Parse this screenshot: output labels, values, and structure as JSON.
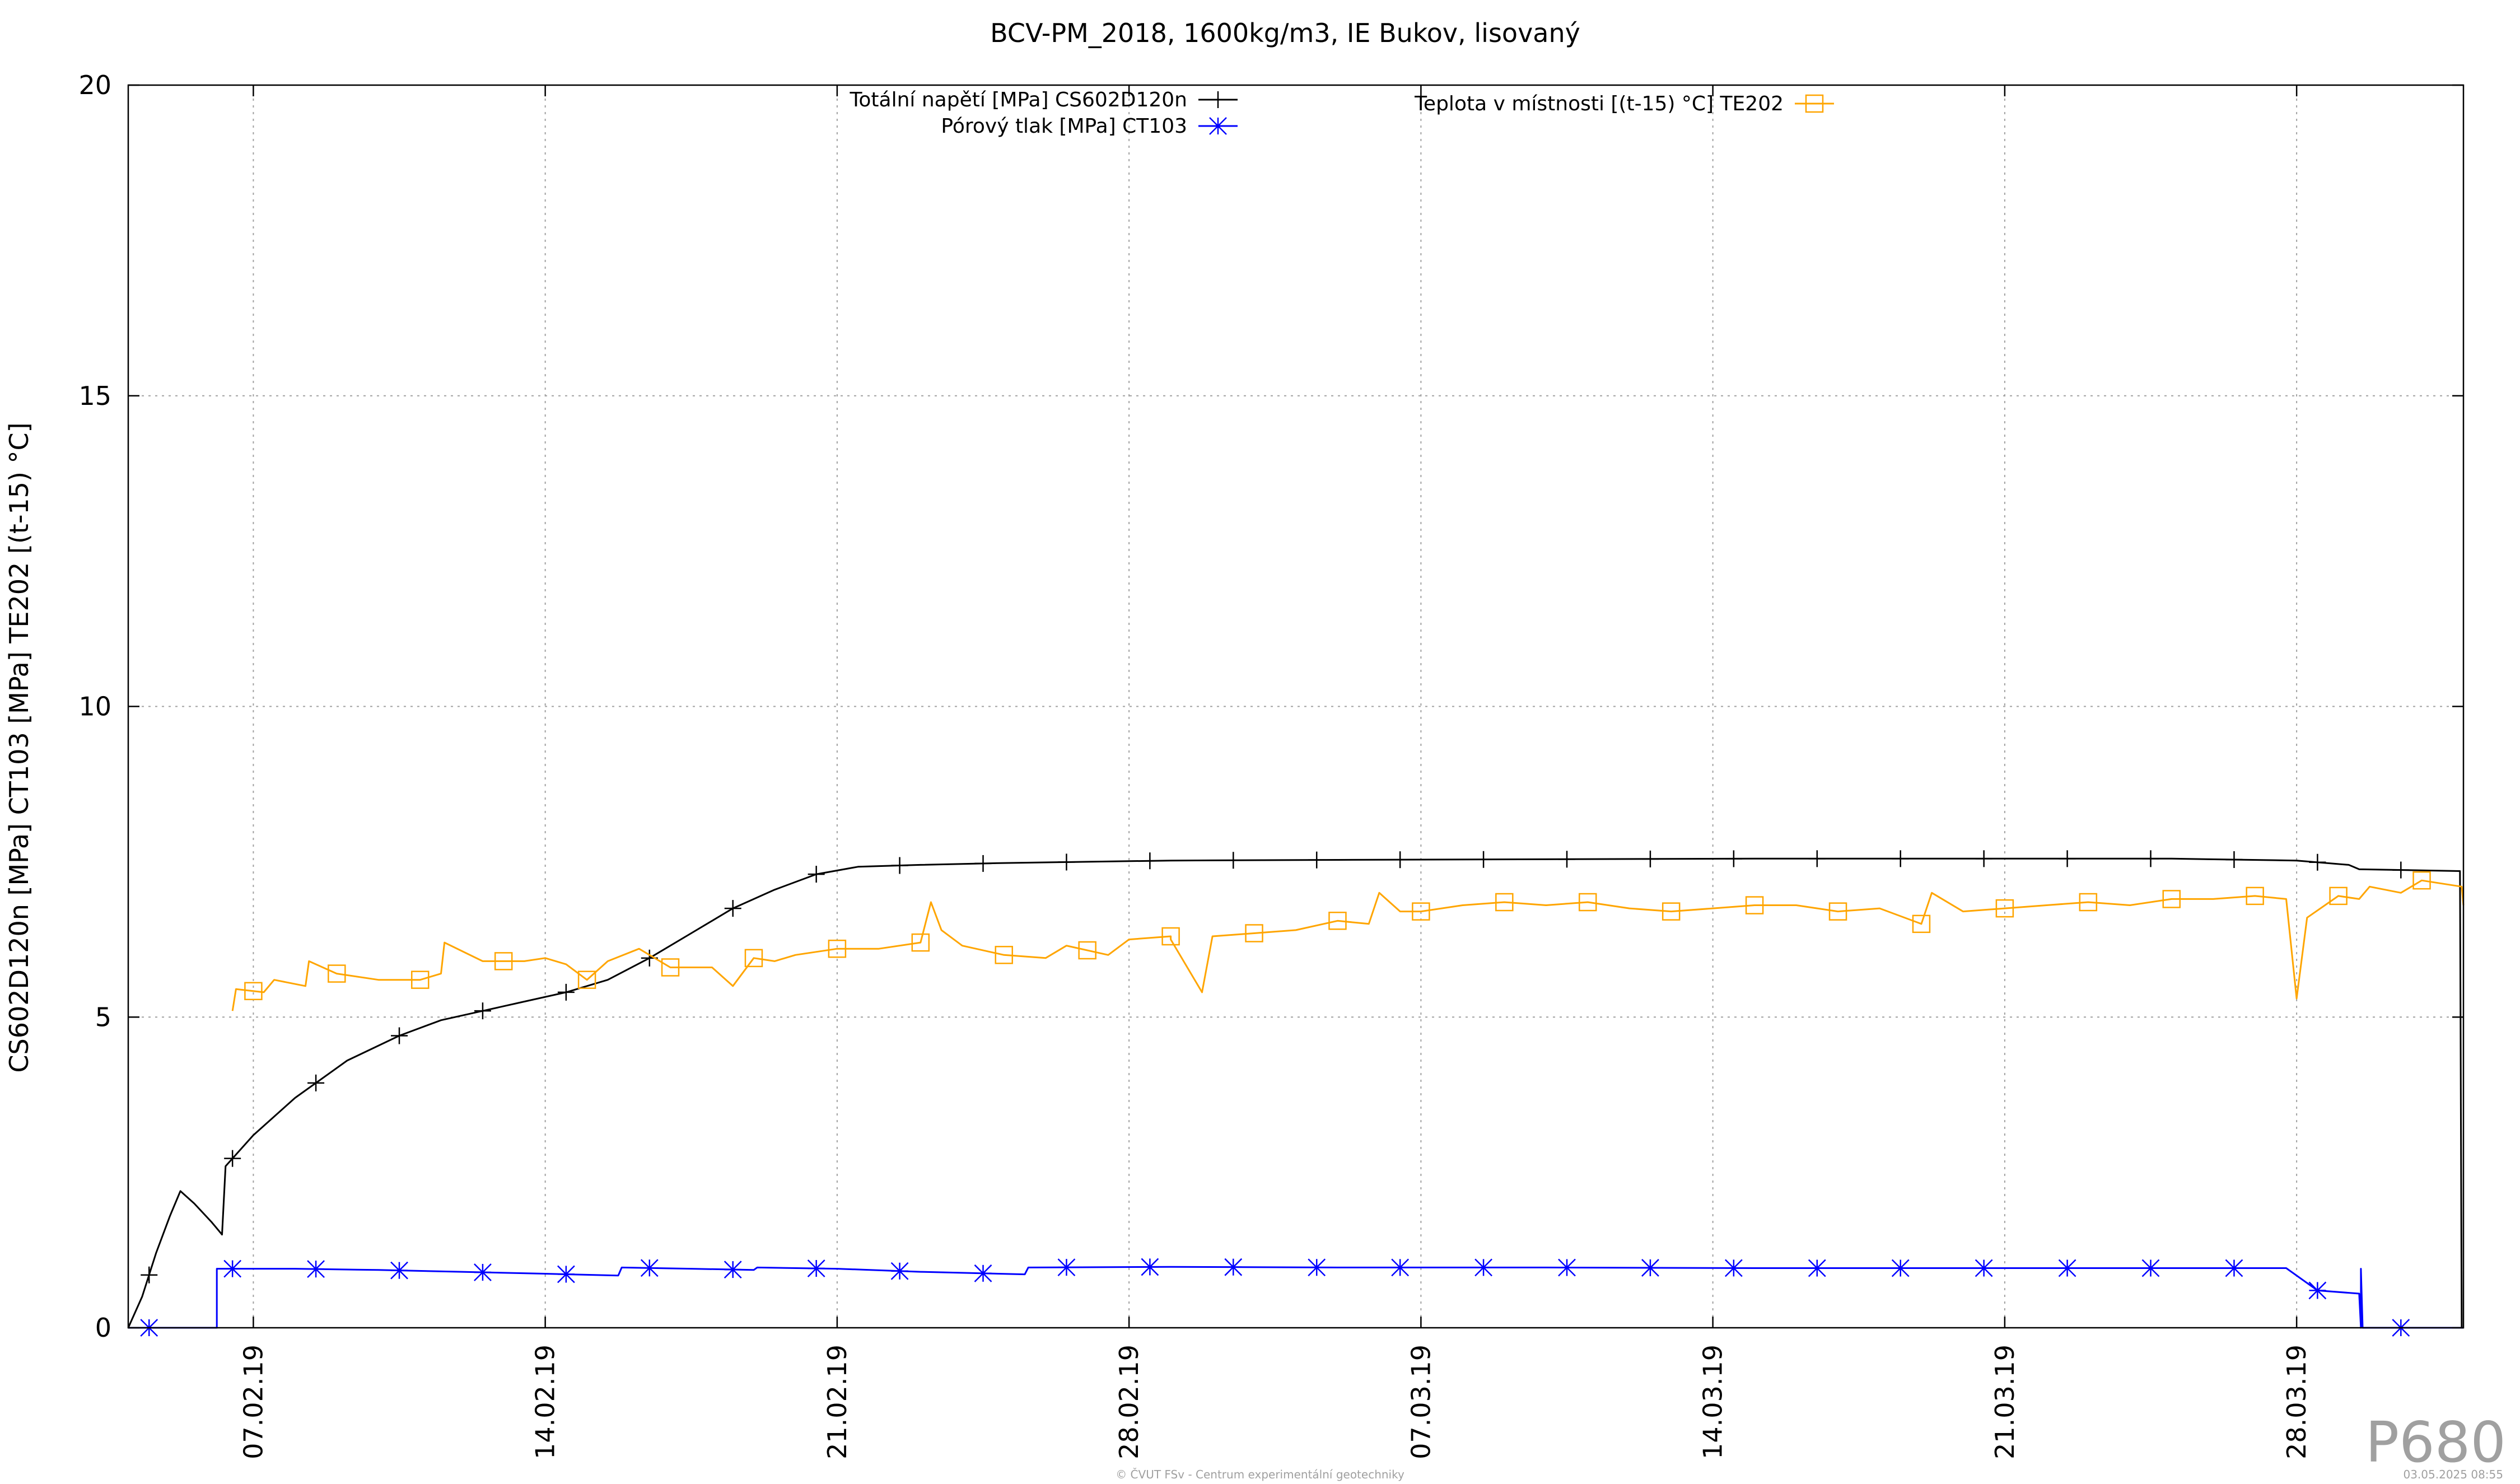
{
  "chart_data": {
    "type": "line",
    "title": "BCV-PM_2018, 1600kg/m3, IE Bukov, lisovaný",
    "ylabel": "CS602D120n [MPa] CT103 [MPa] TE202 [(t-15) °C]",
    "xlabel": "",
    "x_type": "date",
    "xlim": [
      "2019-02-04T00:00",
      "2019-04-01T00:00"
    ],
    "ylim": [
      0,
      20
    ],
    "yticks": [
      0,
      5,
      10,
      15,
      20
    ],
    "xticks": [
      {
        "x": "2019-02-07",
        "label": "07.02.19"
      },
      {
        "x": "2019-02-14",
        "label": "14.02.19"
      },
      {
        "x": "2019-02-21",
        "label": "21.02.19"
      },
      {
        "x": "2019-02-28",
        "label": "28.02.19"
      },
      {
        "x": "2019-03-07",
        "label": "07.03.19"
      },
      {
        "x": "2019-03-14",
        "label": "14.03.19"
      },
      {
        "x": "2019-03-21",
        "label": "21.03.19"
      },
      {
        "x": "2019-03-28",
        "label": "28.03.19"
      }
    ],
    "grid": true,
    "legend_position": "top",
    "series": [
      {
        "name": "Totální napětí [MPa] CS602D120n",
        "color": "#000000",
        "marker": "plus",
        "points": [
          [
            "2019-02-04T00:00",
            0.0
          ],
          [
            "2019-02-04T08:00",
            0.5
          ],
          [
            "2019-02-04T16:00",
            1.2
          ],
          [
            "2019-02-05T00:00",
            1.8
          ],
          [
            "2019-02-05T06:00",
            2.2
          ],
          [
            "2019-02-05T14:00",
            2.0
          ],
          [
            "2019-02-06T00:00",
            1.7
          ],
          [
            "2019-02-06T06:00",
            1.5
          ],
          [
            "2019-02-06T08:00",
            2.6
          ],
          [
            "2019-02-07T00:00",
            3.1
          ],
          [
            "2019-02-08T00:00",
            3.7
          ],
          [
            "2019-02-09T06:00",
            4.3
          ],
          [
            "2019-02-10T12:00",
            4.7
          ],
          [
            "2019-02-11T12:00",
            4.95
          ],
          [
            "2019-02-12T12:00",
            5.1
          ],
          [
            "2019-02-13T12:00",
            5.25
          ],
          [
            "2019-02-14T12:00",
            5.4
          ],
          [
            "2019-02-15T12:00",
            5.6
          ],
          [
            "2019-02-16T12:00",
            5.95
          ],
          [
            "2019-02-17T12:00",
            6.35
          ],
          [
            "2019-02-18T12:00",
            6.75
          ],
          [
            "2019-02-19T12:00",
            7.05
          ],
          [
            "2019-02-20T12:00",
            7.3
          ],
          [
            "2019-02-21T12:00",
            7.42
          ],
          [
            "2019-02-23T00:00",
            7.45
          ],
          [
            "2019-02-25T00:00",
            7.48
          ],
          [
            "2019-02-27T00:00",
            7.5
          ],
          [
            "2019-03-01T00:00",
            7.52
          ],
          [
            "2019-03-05T00:00",
            7.53
          ],
          [
            "2019-03-10T00:00",
            7.54
          ],
          [
            "2019-03-15T00:00",
            7.55
          ],
          [
            "2019-03-20T00:00",
            7.55
          ],
          [
            "2019-03-25T00:00",
            7.55
          ],
          [
            "2019-03-28T00:00",
            7.52
          ],
          [
            "2019-03-29T06:00",
            7.45
          ],
          [
            "2019-03-29T12:00",
            7.38
          ],
          [
            "2019-03-31T22:00",
            7.35
          ],
          [
            "2019-03-31T23:00",
            0.0
          ]
        ]
      },
      {
        "name": "Pórový tlak [MPa] CT103",
        "color": "#0000ff",
        "marker": "star",
        "points": [
          [
            "2019-02-04T00:00",
            0.0
          ],
          [
            "2019-02-06T03:00",
            0.0
          ],
          [
            "2019-02-06T03:00",
            0.95
          ],
          [
            "2019-02-08T00:00",
            0.95
          ],
          [
            "2019-02-10T00:00",
            0.93
          ],
          [
            "2019-02-12T00:00",
            0.9
          ],
          [
            "2019-02-14T00:00",
            0.87
          ],
          [
            "2019-02-15T18:00",
            0.84
          ],
          [
            "2019-02-15T20:00",
            0.97
          ],
          [
            "2019-02-17T12:00",
            0.95
          ],
          [
            "2019-02-19T00:00",
            0.93
          ],
          [
            "2019-02-19T02:00",
            0.97
          ],
          [
            "2019-02-21T00:00",
            0.95
          ],
          [
            "2019-02-23T00:00",
            0.9
          ],
          [
            "2019-02-25T12:00",
            0.86
          ],
          [
            "2019-02-25T14:00",
            0.97
          ],
          [
            "2019-03-01T00:00",
            0.98
          ],
          [
            "2019-03-05T00:00",
            0.97
          ],
          [
            "2019-03-10T00:00",
            0.97
          ],
          [
            "2019-03-15T00:00",
            0.96
          ],
          [
            "2019-03-20T00:00",
            0.96
          ],
          [
            "2019-03-27T18:00",
            0.96
          ],
          [
            "2019-03-28T12:00",
            0.6
          ],
          [
            "2019-03-29T12:00",
            0.55
          ],
          [
            "2019-03-29T13:00",
            0.0
          ],
          [
            "2019-03-29T13:00",
            0.95
          ],
          [
            "2019-03-29T14:00",
            0.0
          ],
          [
            "2019-04-01T00:00",
            0.0
          ]
        ]
      },
      {
        "name": "Teplota v místnosti [(t-15) °C] TE202",
        "color": "#ffa500",
        "marker": "square",
        "points": [
          [
            "2019-02-06T12:00",
            5.1
          ],
          [
            "2019-02-06T14:00",
            5.45
          ],
          [
            "2019-02-07T06:00",
            5.4
          ],
          [
            "2019-02-07T12:00",
            5.6
          ],
          [
            "2019-02-08T06:00",
            5.5
          ],
          [
            "2019-02-08T08:00",
            5.9
          ],
          [
            "2019-02-09T00:00",
            5.7
          ],
          [
            "2019-02-10T00:00",
            5.6
          ],
          [
            "2019-02-11T00:00",
            5.6
          ],
          [
            "2019-02-11T12:00",
            5.7
          ],
          [
            "2019-02-11T14:00",
            6.2
          ],
          [
            "2019-02-12T12:00",
            5.9
          ],
          [
            "2019-02-13T12:00",
            5.9
          ],
          [
            "2019-02-14T00:00",
            5.95
          ],
          [
            "2019-02-14T12:00",
            5.85
          ],
          [
            "2019-02-15T00:00",
            5.6
          ],
          [
            "2019-02-15T12:00",
            5.9
          ],
          [
            "2019-02-16T06:00",
            6.1
          ],
          [
            "2019-02-17T00:00",
            5.8
          ],
          [
            "2019-02-18T00:00",
            5.8
          ],
          [
            "2019-02-18T12:00",
            5.5
          ],
          [
            "2019-02-19T00:00",
            5.95
          ],
          [
            "2019-02-19T12:00",
            5.9
          ],
          [
            "2019-02-20T00:00",
            6.0
          ],
          [
            "2019-02-21T00:00",
            6.1
          ],
          [
            "2019-02-22T00:00",
            6.1
          ],
          [
            "2019-02-23T00:00",
            6.2
          ],
          [
            "2019-02-23T06:00",
            6.85
          ],
          [
            "2019-02-23T12:00",
            6.4
          ],
          [
            "2019-02-24T00:00",
            6.15
          ],
          [
            "2019-02-25T00:00",
            6.0
          ],
          [
            "2019-02-26T00:00",
            5.95
          ],
          [
            "2019-02-26T12:00",
            6.15
          ],
          [
            "2019-02-27T12:00",
            6.0
          ],
          [
            "2019-02-28T00:00",
            6.25
          ],
          [
            "2019-02-29T00:00",
            6.3
          ],
          [
            "2019-03-01T00:00",
            6.25
          ],
          [
            "2019-03-01T18:00",
            5.4
          ],
          [
            "2019-03-02T00:00",
            6.3
          ],
          [
            "2019-03-03T00:00",
            6.35
          ],
          [
            "2019-03-04T00:00",
            6.4
          ],
          [
            "2019-03-05T00:00",
            6.55
          ],
          [
            "2019-03-05T18:00",
            6.5
          ],
          [
            "2019-03-06T00:00",
            7.0
          ],
          [
            "2019-03-06T12:00",
            6.7
          ],
          [
            "2019-03-07T00:00",
            6.7
          ],
          [
            "2019-03-08T00:00",
            6.8
          ],
          [
            "2019-03-09T00:00",
            6.85
          ],
          [
            "2019-03-10T00:00",
            6.8
          ],
          [
            "2019-03-11T00:00",
            6.85
          ],
          [
            "2019-03-12T00:00",
            6.75
          ],
          [
            "2019-03-13T00:00",
            6.7
          ],
          [
            "2019-03-14T00:00",
            6.75
          ],
          [
            "2019-03-15T00:00",
            6.8
          ],
          [
            "2019-03-16T00:00",
            6.8
          ],
          [
            "2019-03-17T00:00",
            6.7
          ],
          [
            "2019-03-18T00:00",
            6.75
          ],
          [
            "2019-03-19T00:00",
            6.5
          ],
          [
            "2019-03-19T06:00",
            7.0
          ],
          [
            "2019-03-20T00:00",
            6.7
          ],
          [
            "2019-03-21T00:00",
            6.75
          ],
          [
            "2019-03-22T00:00",
            6.8
          ],
          [
            "2019-03-23T00:00",
            6.85
          ],
          [
            "2019-03-24T00:00",
            6.8
          ],
          [
            "2019-03-25T00:00",
            6.9
          ],
          [
            "2019-03-26T00:00",
            6.9
          ],
          [
            "2019-03-27T00:00",
            6.95
          ],
          [
            "2019-03-27T18:00",
            6.9
          ],
          [
            "2019-03-28T00:00",
            5.3
          ],
          [
            "2019-03-28T06:00",
            6.6
          ],
          [
            "2019-03-29T00:00",
            6.95
          ],
          [
            "2019-03-29T12:00",
            6.9
          ],
          [
            "2019-03-29T18:00",
            7.1
          ],
          [
            "2019-03-30T12:00",
            7.0
          ],
          [
            "2019-03-31T00:00",
            7.2
          ],
          [
            "2019-03-31T23:00",
            7.1
          ],
          [
            "2019-04-01T00:00",
            6.8
          ]
        ]
      }
    ]
  },
  "watermark": "P680",
  "footer_left": "© ČVUT FSv - Centrum experimentální geotechniky",
  "footer_right": "03.05.2025 08:55"
}
